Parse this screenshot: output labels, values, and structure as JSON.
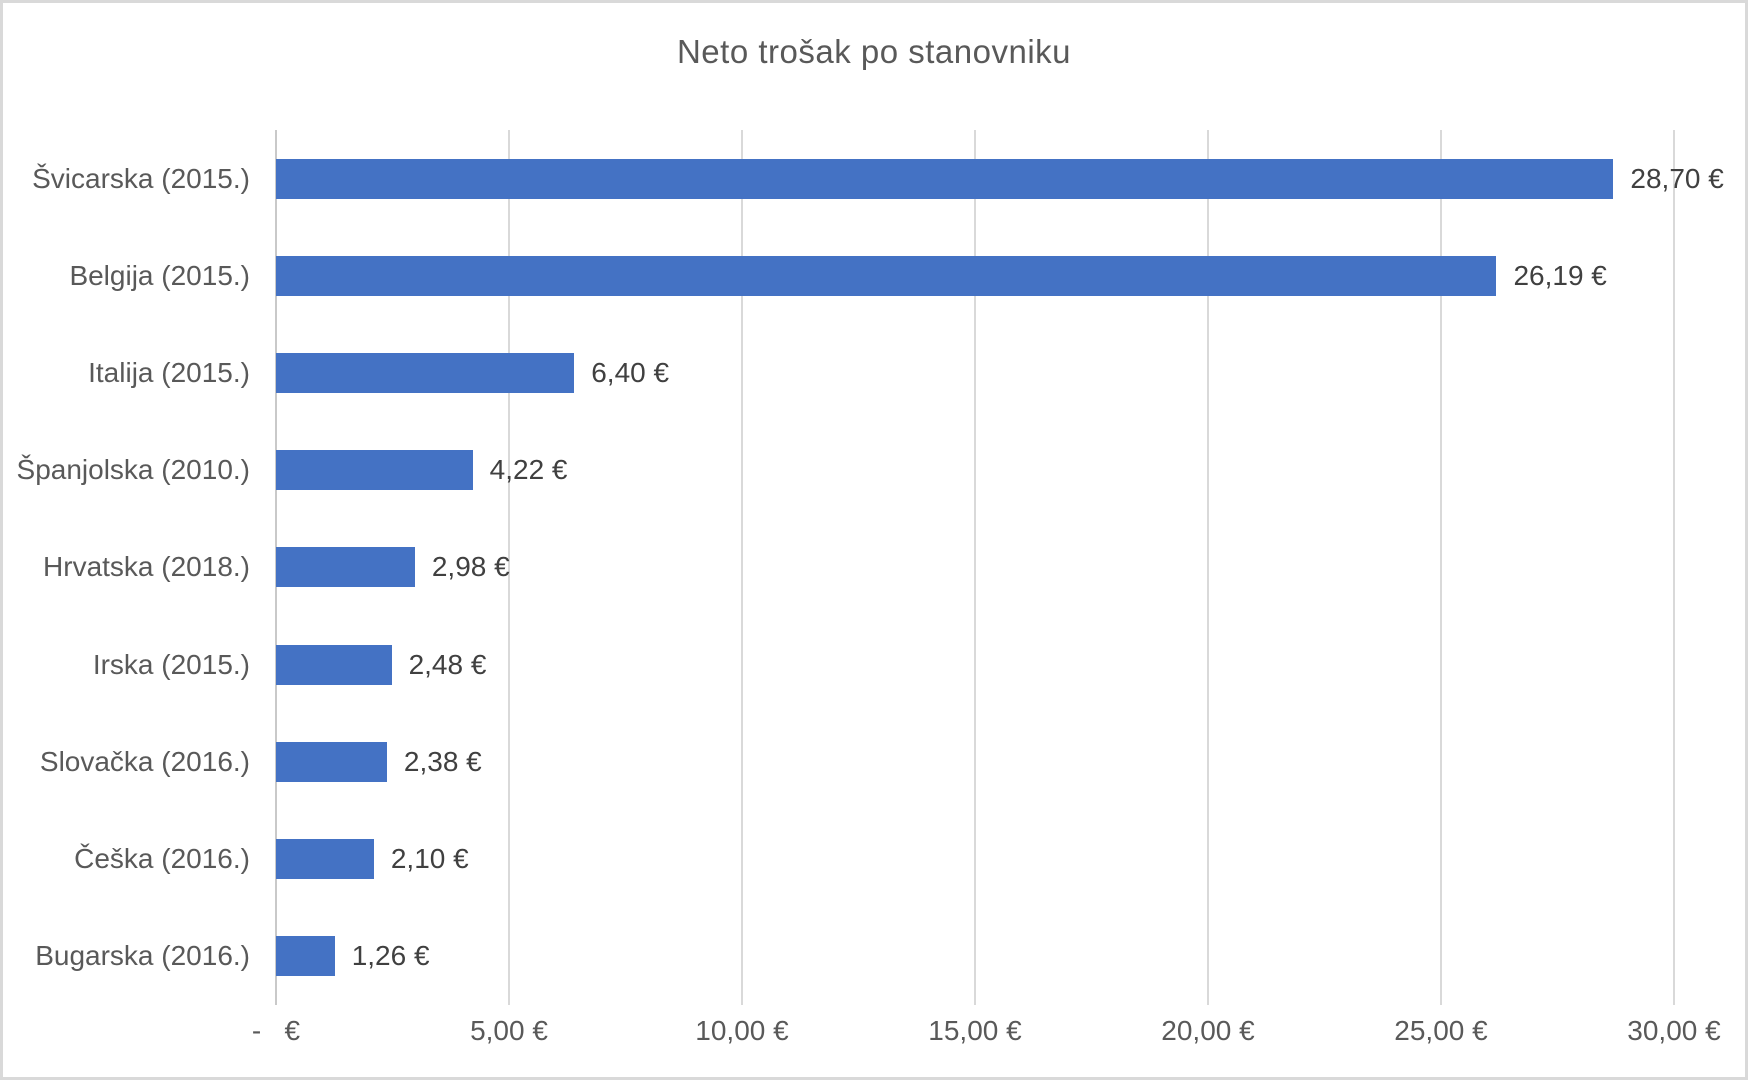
{
  "title": "Neto trošak po stanovniku",
  "chart_data": {
    "type": "bar",
    "orientation": "horizontal",
    "title": "Neto trošak po stanovniku",
    "categories": [
      "Švicarska (2015.)",
      "Belgija (2015.)",
      "Italija (2015.)",
      "Španjolska (2010.)",
      "Hrvatska (2018.)",
      "Irska (2015.)",
      "Slovačka (2016.)",
      "Češka (2016.)",
      "Bugarska (2016.)"
    ],
    "values": [
      28.7,
      26.19,
      6.4,
      4.22,
      2.98,
      2.48,
      2.38,
      2.1,
      1.26
    ],
    "value_labels": [
      "28,70 €",
      "26,19 €",
      "6,40 €",
      "4,22 €",
      "2,98 €",
      "2,48 €",
      "2,38 €",
      "2,10 €",
      "1,26 €"
    ],
    "xlabel": "",
    "ylabel": "",
    "xlim": [
      0,
      30
    ],
    "x_ticks": [
      0,
      5,
      10,
      15,
      20,
      25,
      30
    ],
    "x_tick_labels": [
      "-   €",
      "5,00 €",
      "10,00 €",
      "15,00 €",
      "20,00 €",
      "25,00 €",
      "30,00 €"
    ],
    "grid": "vertical",
    "legend": "none",
    "colors": {
      "bar": "#4472C4",
      "gridline": "#D9D9D9",
      "axis_line": "#C9C9C9",
      "title_text": "#595959",
      "axis_text": "#595959",
      "data_label_text": "#404040",
      "frame_border": "#D9D9D9"
    }
  }
}
